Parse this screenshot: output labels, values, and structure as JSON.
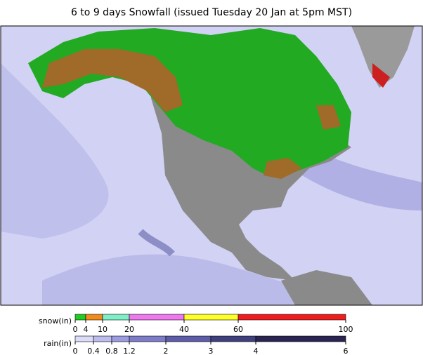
{
  "title": "6 to 9 days Snowfall (issued Tuesday 20 Jan at 5pm MST)",
  "legend": {
    "snow": {
      "label": "snow(in)",
      "ticks": [
        0,
        4,
        10,
        20,
        40,
        60,
        100
      ],
      "colors": [
        "#22cc22",
        "#f08c1e",
        "#7df0c8",
        "#ee78ee",
        "#ffff28",
        "#ee1e1e"
      ]
    },
    "rain": {
      "label": "rain(in)",
      "ticks": [
        0,
        0.4,
        0.8,
        1.2,
        2,
        3,
        4,
        6
      ],
      "colors": [
        "#dcdcf8",
        "#bcbcee",
        "#9c9ce0",
        "#7c7cc8",
        "#5c5ca8",
        "#40407e",
        "#2a2450"
      ]
    }
  }
}
